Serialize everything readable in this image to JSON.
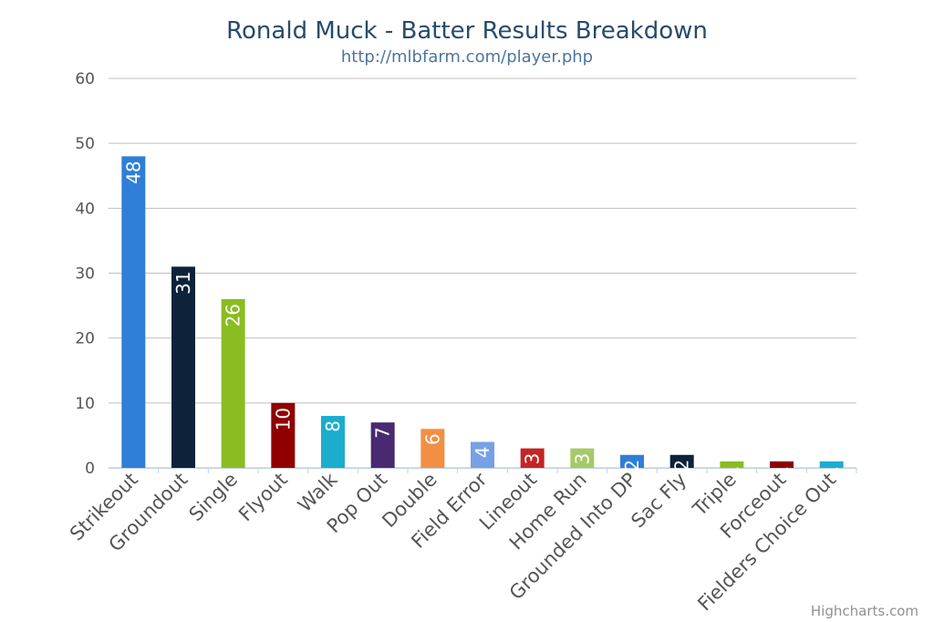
{
  "chart_data": {
    "type": "bar",
    "title": "Ronald Muck - Batter Results Breakdown",
    "subtitle": "http://mlbfarm.com/player.php",
    "xlabel": "",
    "ylabel": "",
    "ylim": [
      0,
      60
    ],
    "yticks": [
      0,
      10,
      20,
      30,
      40,
      50,
      60
    ],
    "grid": true,
    "legend": "none",
    "categories": [
      "Strikeout",
      "Groundout",
      "Single",
      "Flyout",
      "Walk",
      "Pop Out",
      "Double",
      "Field Error",
      "Lineout",
      "Home Run",
      "Grounded Into DP",
      "Sac Fly",
      "Triple",
      "Forceout",
      "Fielders Choice Out"
    ],
    "values": [
      48,
      31,
      26,
      10,
      8,
      7,
      6,
      4,
      3,
      3,
      2,
      2,
      1,
      1,
      1
    ],
    "colors": [
      "#2f7ed8",
      "#0d233a",
      "#8bbc21",
      "#910000",
      "#1aadce",
      "#492970",
      "#f28f43",
      "#77a1e5",
      "#c42525",
      "#a6c96a",
      "#2f7ed8",
      "#0d233a",
      "#8bbc21",
      "#910000",
      "#1aadce"
    ],
    "data_labels": true
  },
  "credits": "Highcharts.com"
}
